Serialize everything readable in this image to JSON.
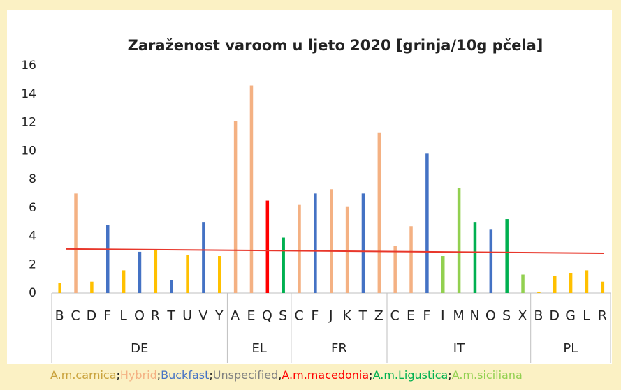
{
  "chart_data": {
    "type": "bar",
    "title": "Zaraženost varoom u ljeto 2020 [grinja/10g pčela]",
    "ylim": [
      0,
      16
    ],
    "yticks": [
      0,
      2,
      4,
      6,
      8,
      10,
      12,
      14,
      16
    ],
    "groups": [
      {
        "name": "DE",
        "categories": [
          "B",
          "C",
          "D",
          "F",
          "L",
          "O",
          "R",
          "T",
          "U",
          "V",
          "Y"
        ],
        "values": [
          0.7,
          7.0,
          0.8,
          4.8,
          1.6,
          2.9,
          3.0,
          0.9,
          2.7,
          5.0,
          2.6
        ],
        "colors": [
          "#ffc000",
          "#f4b183",
          "#ffc000",
          "#4472c4",
          "#ffc000",
          "#4472c4",
          "#ffc000",
          "#4472c4",
          "#ffc000",
          "#4472c4",
          "#ffc000"
        ]
      },
      {
        "name": "EL",
        "categories": [
          "A",
          "E",
          "Q",
          "S"
        ],
        "values": [
          12.1,
          14.6,
          6.5,
          3.9
        ],
        "colors": [
          "#f4b183",
          "#f4b183",
          "#ff0000",
          "#00b050"
        ]
      },
      {
        "name": "FR",
        "categories": [
          "C",
          "F",
          "J",
          "K",
          "T",
          "Z"
        ],
        "values": [
          6.2,
          7.0,
          7.3,
          6.1,
          7.0,
          11.3
        ],
        "colors": [
          "#f4b183",
          "#4472c4",
          "#f4b183",
          "#f4b183",
          "#4472c4",
          "#f4b183"
        ]
      },
      {
        "name": "IT",
        "categories": [
          "C",
          "E",
          "F",
          "I",
          "M",
          "N",
          "O",
          "S",
          "X"
        ],
        "values": [
          3.3,
          4.7,
          9.8,
          2.6,
          7.4,
          5.0,
          4.5,
          5.2,
          1.3
        ],
        "colors": [
          "#f4b183",
          "#f4b183",
          "#4472c4",
          "#92d050",
          "#92d050",
          "#00b050",
          "#4472c4",
          "#00b050",
          "#92d050"
        ]
      },
      {
        "name": "PL",
        "categories": [
          "B",
          "D",
          "G",
          "L",
          "R"
        ],
        "values": [
          0.1,
          1.2,
          1.4,
          1.6,
          0.8
        ],
        "colors": [
          "#ffc000",
          "#ffc000",
          "#ffc000",
          "#ffc000",
          "#ffc000"
        ]
      }
    ],
    "trend_line": {
      "color": "#e8372b",
      "values": [
        3.1,
        2.8
      ]
    },
    "legend": [
      {
        "name": "A.m.carnica",
        "color": "#c9a23c",
        "separator": ";"
      },
      {
        "name": "Hybrid",
        "color": "#f4b183",
        "separator": ";"
      },
      {
        "name": "Buckfast",
        "color": "#4472c4",
        "separator": ";"
      },
      {
        "name": "Unspecified",
        "color": "#808080",
        "separator": ","
      },
      {
        "name": "A.m.macedonia",
        "color": "#ff0000",
        "separator": ";"
      },
      {
        "name": "A.m.Ligustica",
        "color": "#00b050",
        "separator": ";"
      },
      {
        "name": "A.m.siciliana",
        "color": "#92d050"
      }
    ]
  }
}
